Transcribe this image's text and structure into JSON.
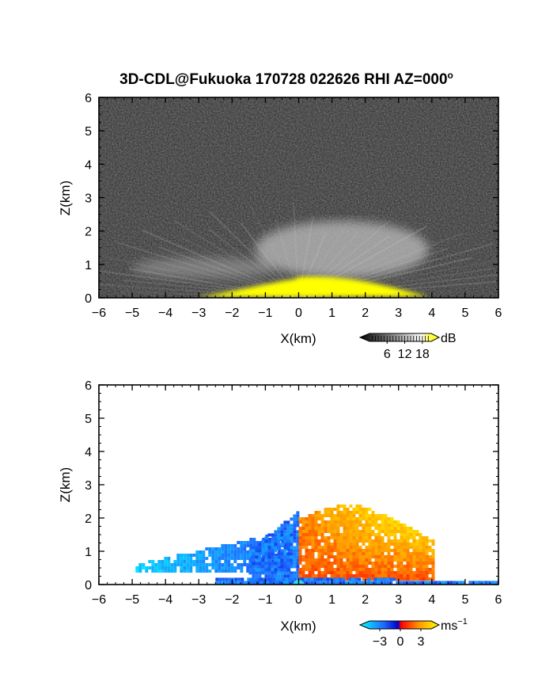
{
  "chart_data": [
    {
      "type": "heatmap",
      "title": "3D-CDL@Fukuoka 170728 022626 RHI AZ=000",
      "title_superscript": "o",
      "xlabel": "X(km)",
      "ylabel": "Z(km)",
      "xlim": [
        -6,
        6
      ],
      "ylim": [
        0,
        6
      ],
      "xticks": [
        "-6",
        "-5",
        "-4",
        "-3",
        "-2",
        "-1",
        "0",
        "1",
        "2",
        "3",
        "4",
        "5",
        "6"
      ],
      "yticks": [
        "0",
        "1",
        "2",
        "3",
        "4",
        "5",
        "6"
      ],
      "background": "#2a2a2a",
      "colorbar": {
        "unit": "dB",
        "ticks": [
          "6",
          "12",
          "18"
        ],
        "tick_values": [
          6,
          12,
          18
        ],
        "range": [
          0,
          21
        ],
        "colors": [
          "#000000",
          "#ffffff",
          "#ffff00"
        ]
      },
      "features": [
        {
          "name": "backscatter-plume",
          "x_center": 1.3,
          "z_center": 1.45,
          "x_halfwidth": 2.6,
          "z_halfwidth": 0.85,
          "value_db": 12
        },
        {
          "name": "left-layer",
          "x_center": -2.8,
          "z_center": 0.9,
          "x_halfwidth": 2.2,
          "z_halfwidth": 0.3,
          "value_db": 9
        },
        {
          "name": "surface-saturation",
          "x_range": [
            -3.3,
            4.1
          ],
          "z_max": 0.85,
          "value_db": 20
        }
      ]
    },
    {
      "type": "heatmap",
      "xlabel": "X(km)",
      "ylabel": "Z(km)",
      "xlim": [
        -6,
        6
      ],
      "ylim": [
        0,
        6
      ],
      "xticks": [
        "-6",
        "-5",
        "-4",
        "-3",
        "-2",
        "-1",
        "0",
        "1",
        "2",
        "3",
        "4",
        "5",
        "6"
      ],
      "yticks": [
        "0",
        "1",
        "2",
        "3",
        "4",
        "5",
        "6"
      ],
      "colorbar": {
        "unit": "ms",
        "unit_superscript": "−1",
        "ticks": [
          "−3",
          "0",
          "3"
        ],
        "tick_values": [
          -3,
          0,
          3
        ],
        "range": [
          -4.5,
          4.5
        ],
        "colors": [
          "#00ffff",
          "#1e6aff",
          "#0000cc",
          "#ff0000",
          "#ff9900",
          "#ffff00"
        ]
      },
      "features": [
        {
          "name": "approaching-left-wing",
          "x_range": [
            -4.9,
            -0.3
          ],
          "z_range": [
            0.4,
            1.5
          ],
          "velocity_ms": -3
        },
        {
          "name": "approaching-core",
          "x_range": [
            -1.5,
            0.0
          ],
          "z_range": [
            0.1,
            2.3
          ],
          "velocity_ms": -2
        },
        {
          "name": "receding-plume",
          "x_range": [
            0.0,
            4.0
          ],
          "z_range": [
            0.2,
            2.5
          ],
          "velocity_ms": 2.5
        },
        {
          "name": "surface-flow",
          "x_range": [
            -2.5,
            6.0
          ],
          "z_range": [
            0.0,
            0.3
          ],
          "velocity_ms": -2
        }
      ]
    }
  ]
}
